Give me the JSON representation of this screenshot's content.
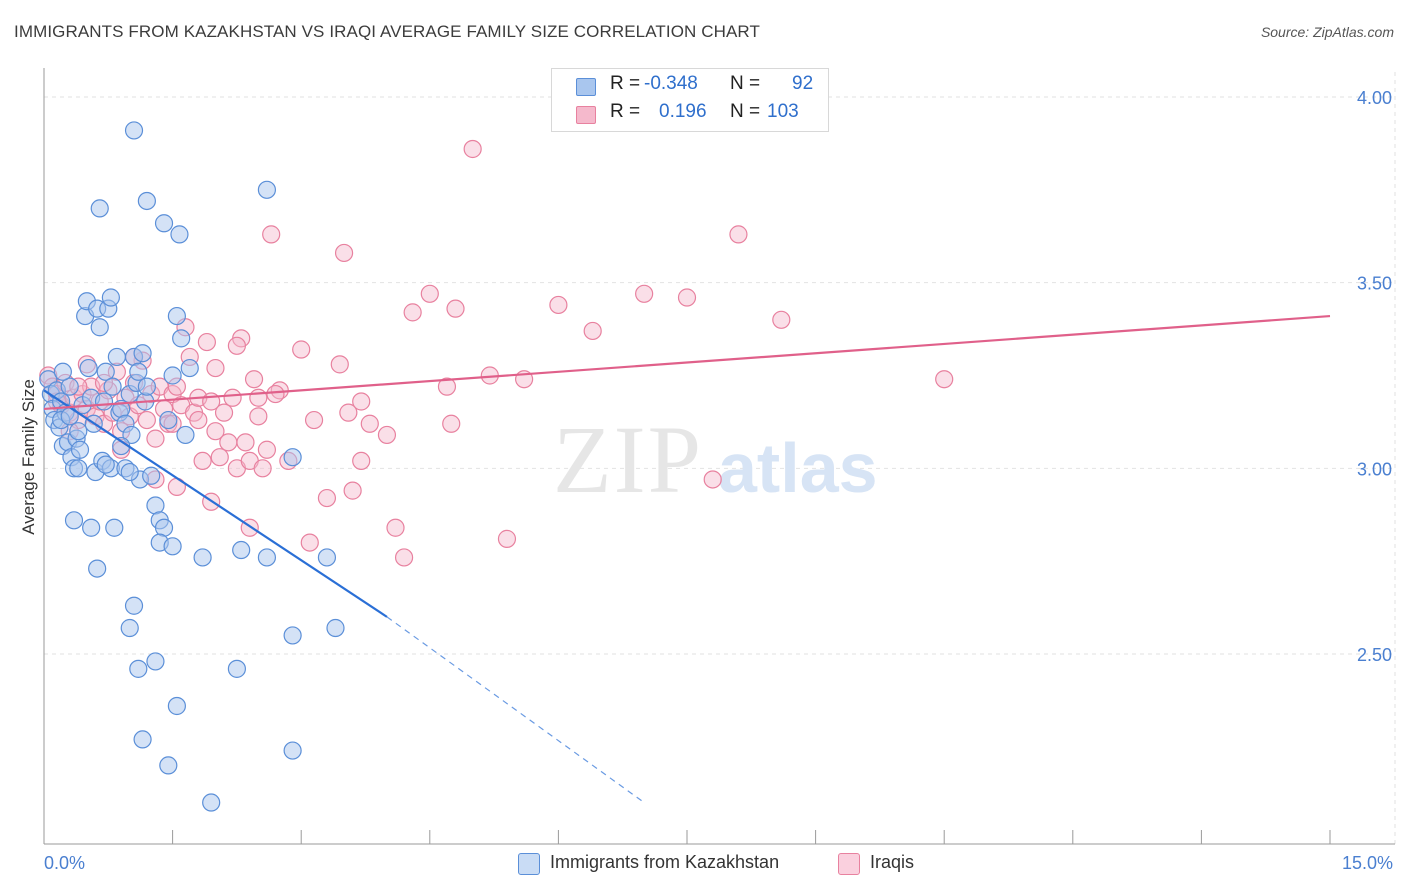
{
  "title": "IMMIGRANTS FROM KAZAKHSTAN VS IRAQI AVERAGE FAMILY SIZE CORRELATION CHART",
  "source": "Source: ZipAtlas.com",
  "watermark": {
    "zip": "ZIP",
    "atlas": "atlas"
  },
  "legend": {
    "rows": [
      {
        "r_label": "R =",
        "r_value": "-0.348",
        "n_label": "N =",
        "n_value": "92"
      },
      {
        "r_label": "R =",
        "r_value": "0.196",
        "n_label": "N =",
        "n_value": "103"
      }
    ]
  },
  "bottom_legend": [
    "Immigrants from Kazakhstan",
    "Iraqis"
  ],
  "colors": {
    "blue_fill": "#a9c6ee",
    "blue_stroke": "#5b8fd8",
    "blue_line": "#2a6fd6",
    "pink_fill": "#f5b9cc",
    "pink_stroke": "#e8819f",
    "pink_line": "#e0608a",
    "axis_text": "#4a7fd0",
    "grid": "#e2e2e2"
  },
  "chart_data": {
    "type": "scatter",
    "title": "IMMIGRANTS FROM KAZAKHSTAN VS IRAQI AVERAGE FAMILY SIZE CORRELATION CHART",
    "xlabel": "",
    "ylabel": "Average Family Size",
    "xlim": [
      0,
      15
    ],
    "ylim": [
      2.0,
      4.0
    ],
    "x_tick_labels": [
      "0.0%",
      "15.0%"
    ],
    "y_ticks": [
      2.5,
      3.0,
      3.5,
      4.0
    ],
    "y_tick_labels": [
      "2.50",
      "3.00",
      "3.50",
      "4.00"
    ],
    "grid": true,
    "legend_position": "top-center",
    "series": [
      {
        "name": "Immigrants from Kazakhstan",
        "r": -0.348,
        "n": 92,
        "trend": {
          "x": [
            0.0,
            4.0
          ],
          "y": [
            3.21,
            2.6
          ],
          "dashed_extension_to": [
            7.0,
            2.1
          ]
        },
        "points": [
          [
            0.05,
            3.24
          ],
          [
            0.08,
            3.2
          ],
          [
            0.1,
            3.16
          ],
          [
            0.12,
            3.13
          ],
          [
            0.15,
            3.21
          ],
          [
            0.18,
            3.11
          ],
          [
            0.2,
            3.18
          ],
          [
            0.22,
            3.06
          ],
          [
            0.25,
            3.15
          ],
          [
            0.28,
            3.07
          ],
          [
            0.3,
            3.22
          ],
          [
            0.32,
            3.03
          ],
          [
            0.35,
            3.0
          ],
          [
            0.38,
            3.08
          ],
          [
            0.4,
            3.1
          ],
          [
            0.42,
            3.05
          ],
          [
            0.45,
            3.17
          ],
          [
            0.48,
            3.41
          ],
          [
            0.5,
            3.45
          ],
          [
            0.52,
            3.27
          ],
          [
            0.55,
            3.19
          ],
          [
            0.58,
            3.12
          ],
          [
            0.6,
            2.99
          ],
          [
            0.62,
            3.43
          ],
          [
            0.65,
            3.38
          ],
          [
            0.68,
            3.02
          ],
          [
            0.7,
            3.18
          ],
          [
            0.72,
            3.26
          ],
          [
            0.75,
            3.43
          ],
          [
            0.78,
            3.0
          ],
          [
            0.8,
            3.22
          ],
          [
            0.85,
            3.3
          ],
          [
            0.88,
            3.15
          ],
          [
            0.9,
            3.16
          ],
          [
            0.95,
            3.12
          ],
          [
            1.0,
            3.2
          ],
          [
            1.02,
            3.09
          ],
          [
            1.05,
            3.3
          ],
          [
            1.08,
            3.23
          ],
          [
            1.1,
            3.26
          ],
          [
            1.12,
            2.97
          ],
          [
            1.15,
            3.31
          ],
          [
            1.18,
            3.18
          ],
          [
            1.2,
            3.22
          ],
          [
            1.25,
            2.98
          ],
          [
            1.3,
            2.9
          ],
          [
            1.35,
            2.86
          ],
          [
            1.4,
            2.84
          ],
          [
            1.45,
            3.13
          ],
          [
            1.5,
            3.25
          ],
          [
            1.55,
            3.41
          ],
          [
            1.6,
            3.35
          ],
          [
            1.65,
            3.09
          ],
          [
            1.7,
            3.27
          ],
          [
            0.35,
            2.86
          ],
          [
            0.55,
            2.84
          ],
          [
            0.62,
            2.73
          ],
          [
            0.82,
            2.84
          ],
          [
            0.72,
            3.01
          ],
          [
            0.95,
            3.0
          ],
          [
            1.0,
            2.99
          ],
          [
            0.65,
            3.7
          ],
          [
            0.78,
            3.46
          ],
          [
            1.05,
            2.63
          ],
          [
            1.2,
            3.72
          ],
          [
            1.4,
            3.66
          ],
          [
            1.05,
            3.91
          ],
          [
            1.58,
            3.63
          ],
          [
            2.6,
            3.75
          ],
          [
            0.4,
            3.0
          ],
          [
            0.9,
            3.06
          ],
          [
            1.35,
            2.8
          ],
          [
            1.5,
            2.79
          ],
          [
            1.85,
            2.76
          ],
          [
            2.3,
            2.78
          ],
          [
            2.6,
            2.76
          ],
          [
            3.3,
            2.76
          ],
          [
            1.0,
            2.57
          ],
          [
            1.1,
            2.46
          ],
          [
            1.3,
            2.48
          ],
          [
            1.55,
            2.36
          ],
          [
            1.15,
            2.27
          ],
          [
            1.45,
            2.2
          ],
          [
            1.95,
            2.1
          ],
          [
            2.25,
            2.46
          ],
          [
            2.9,
            2.55
          ],
          [
            3.4,
            2.57
          ],
          [
            2.9,
            2.24
          ],
          [
            2.9,
            3.03
          ],
          [
            0.2,
            3.13
          ],
          [
            0.3,
            3.14
          ],
          [
            0.22,
            3.26
          ]
        ]
      },
      {
        "name": "Iraqis",
        "r": 0.196,
        "n": 103,
        "trend": {
          "x": [
            0.0,
            15.0
          ],
          "y": [
            3.16,
            3.41
          ]
        },
        "points": [
          [
            0.05,
            3.25
          ],
          [
            0.1,
            3.22
          ],
          [
            0.15,
            3.2
          ],
          [
            0.2,
            3.17
          ],
          [
            0.25,
            3.23
          ],
          [
            0.3,
            3.15
          ],
          [
            0.35,
            3.19
          ],
          [
            0.4,
            3.13
          ],
          [
            0.45,
            3.2
          ],
          [
            0.5,
            3.16
          ],
          [
            0.55,
            3.22
          ],
          [
            0.6,
            3.14
          ],
          [
            0.65,
            3.18
          ],
          [
            0.7,
            3.12
          ],
          [
            0.75,
            3.21
          ],
          [
            0.8,
            3.15
          ],
          [
            0.85,
            3.26
          ],
          [
            0.9,
            3.1
          ],
          [
            0.95,
            3.19
          ],
          [
            1.0,
            3.14
          ],
          [
            1.05,
            3.23
          ],
          [
            1.1,
            3.17
          ],
          [
            1.15,
            3.29
          ],
          [
            1.2,
            3.13
          ],
          [
            1.25,
            3.2
          ],
          [
            1.3,
            3.08
          ],
          [
            1.35,
            3.22
          ],
          [
            1.4,
            3.16
          ],
          [
            1.45,
            3.12
          ],
          [
            1.5,
            3.2
          ],
          [
            1.55,
            3.22
          ],
          [
            1.6,
            3.17
          ],
          [
            1.65,
            3.38
          ],
          [
            1.7,
            3.3
          ],
          [
            1.75,
            3.15
          ],
          [
            1.8,
            3.19
          ],
          [
            1.85,
            3.02
          ],
          [
            1.9,
            3.34
          ],
          [
            1.95,
            3.18
          ],
          [
            2.0,
            3.1
          ],
          [
            2.05,
            3.03
          ],
          [
            2.1,
            3.15
          ],
          [
            2.15,
            3.07
          ],
          [
            2.2,
            3.19
          ],
          [
            2.25,
            3.0
          ],
          [
            2.3,
            3.35
          ],
          [
            2.35,
            3.07
          ],
          [
            2.4,
            3.02
          ],
          [
            2.45,
            3.24
          ],
          [
            2.5,
            3.14
          ],
          [
            2.55,
            3.0
          ],
          [
            2.6,
            3.05
          ],
          [
            2.65,
            3.63
          ],
          [
            2.75,
            3.21
          ],
          [
            2.85,
            3.02
          ],
          [
            3.0,
            3.32
          ],
          [
            3.15,
            3.13
          ],
          [
            3.3,
            2.92
          ],
          [
            3.45,
            3.28
          ],
          [
            3.5,
            3.58
          ],
          [
            3.6,
            2.94
          ],
          [
            3.7,
            3.18
          ],
          [
            3.8,
            3.12
          ],
          [
            4.0,
            3.09
          ],
          [
            4.1,
            2.84
          ],
          [
            4.2,
            2.76
          ],
          [
            4.3,
            3.42
          ],
          [
            4.5,
            3.47
          ],
          [
            4.7,
            3.22
          ],
          [
            4.75,
            3.12
          ],
          [
            4.8,
            3.43
          ],
          [
            5.0,
            3.86
          ],
          [
            5.2,
            3.25
          ],
          [
            5.6,
            3.24
          ],
          [
            5.4,
            2.81
          ],
          [
            6.0,
            3.44
          ],
          [
            6.4,
            3.37
          ],
          [
            7.0,
            3.47
          ],
          [
            7.5,
            3.46
          ],
          [
            7.8,
            2.97
          ],
          [
            8.1,
            3.63
          ],
          [
            8.6,
            3.4
          ],
          [
            10.5,
            3.24
          ],
          [
            0.5,
            3.28
          ],
          [
            0.15,
            3.18
          ],
          [
            0.3,
            3.1
          ],
          [
            0.7,
            3.23
          ],
          [
            1.05,
            3.3
          ],
          [
            1.5,
            3.12
          ],
          [
            2.0,
            3.27
          ],
          [
            2.5,
            3.19
          ],
          [
            0.9,
            3.05
          ],
          [
            1.3,
            2.97
          ],
          [
            1.55,
            2.95
          ],
          [
            1.95,
            2.91
          ],
          [
            2.25,
            3.33
          ],
          [
            2.7,
            3.2
          ],
          [
            3.1,
            2.8
          ],
          [
            3.55,
            3.15
          ],
          [
            1.8,
            3.13
          ],
          [
            0.4,
            3.22
          ],
          [
            2.4,
            2.84
          ],
          [
            3.7,
            3.02
          ]
        ]
      }
    ]
  }
}
